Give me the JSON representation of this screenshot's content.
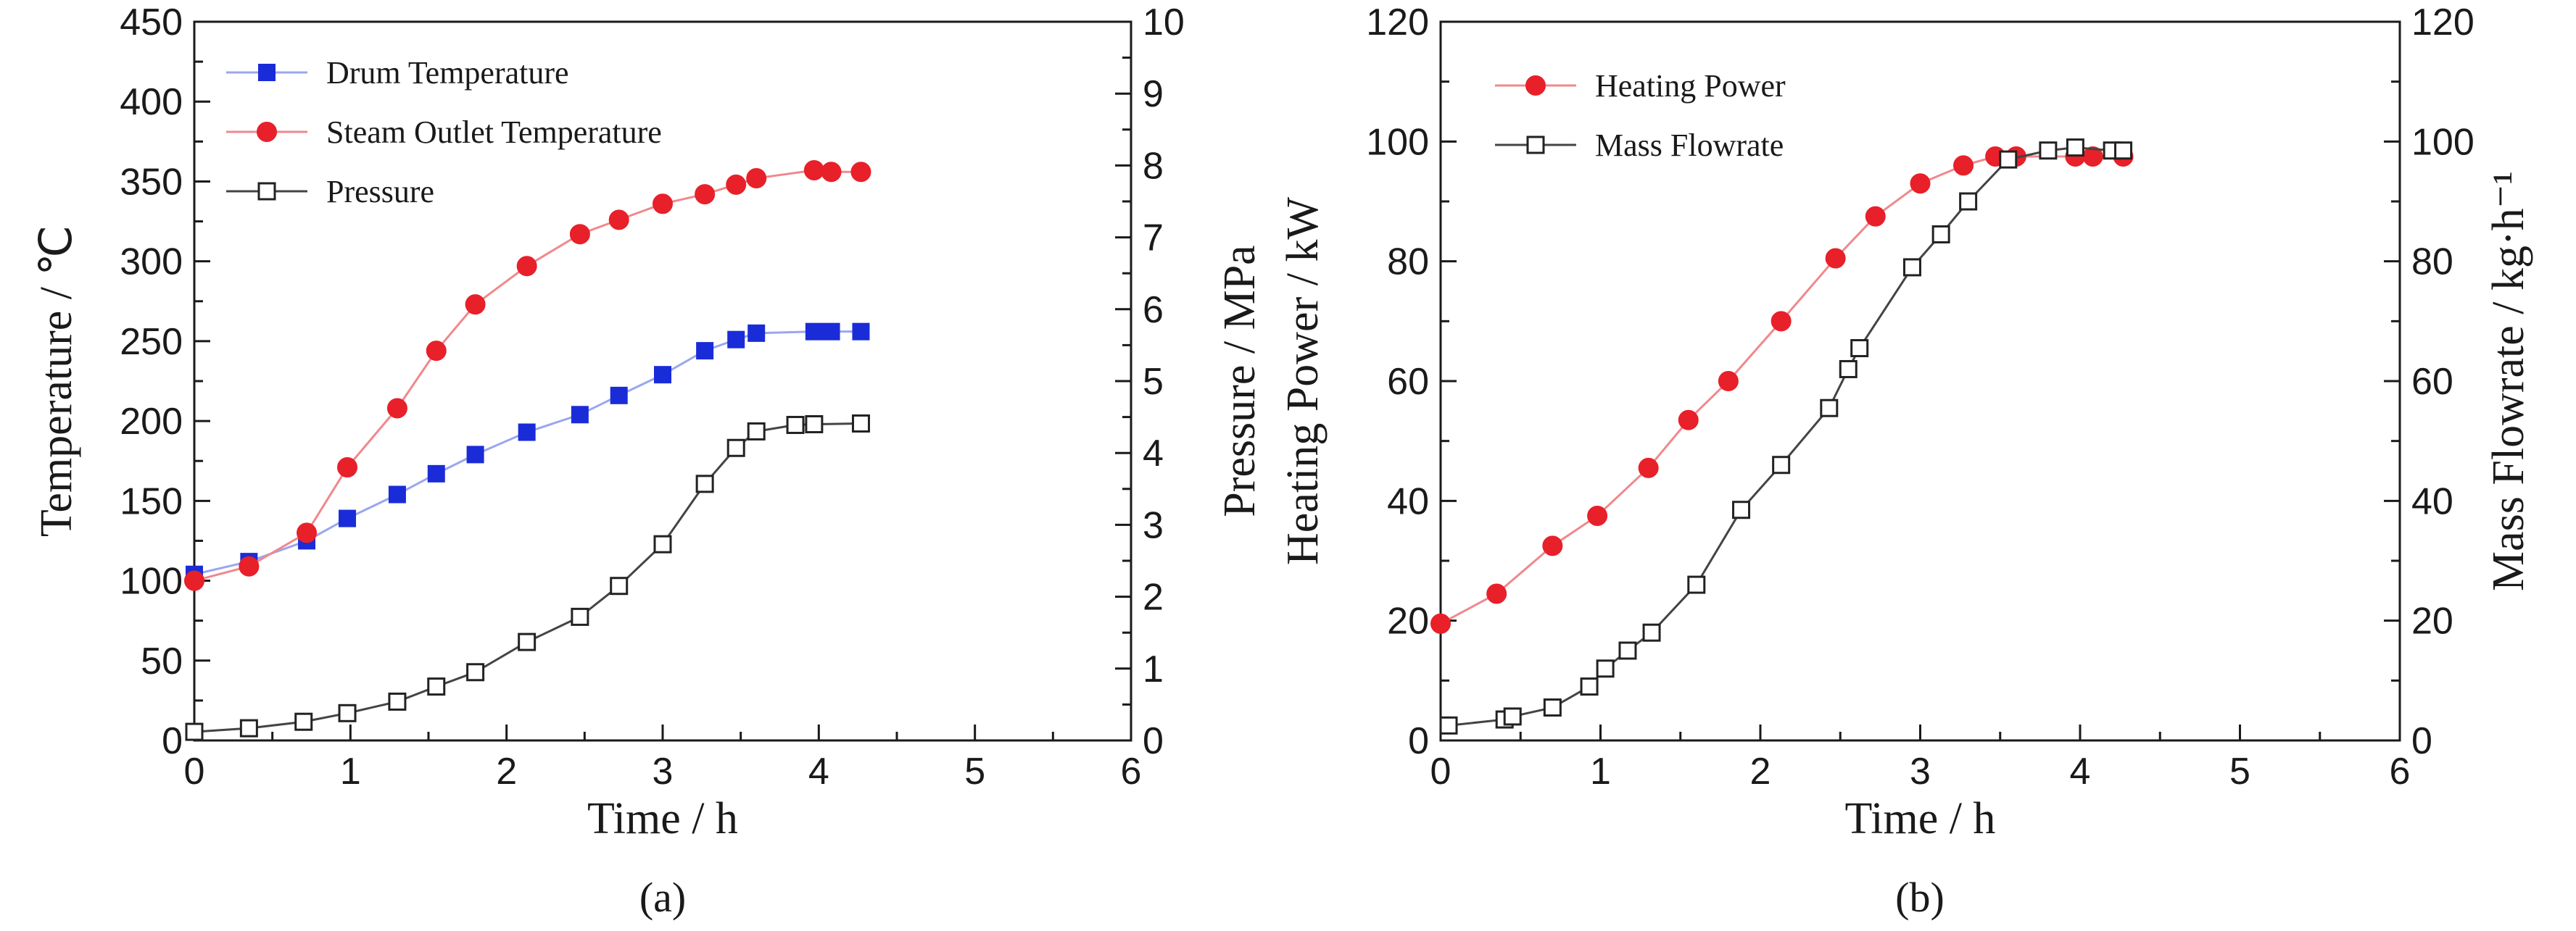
{
  "chart_data": [
    {
      "id": "a",
      "type": "line",
      "caption": "(a)",
      "xlabel": "Time / h",
      "ylabel_left": "Temperature / ℃",
      "ylabel_right": "Pressure / MPa",
      "xlim": [
        0,
        6
      ],
      "xticks": [
        0,
        1,
        2,
        3,
        4,
        5,
        6
      ],
      "ylim_left": [
        0,
        450
      ],
      "yticks_left": [
        0,
        50,
        100,
        150,
        200,
        250,
        300,
        350,
        400,
        450
      ],
      "ylim_right": [
        0,
        10
      ],
      "yticks_right": [
        0,
        1,
        2,
        3,
        4,
        5,
        6,
        7,
        8,
        9,
        10
      ],
      "legend_position": "top-left",
      "series": [
        {
          "name": "Drum Temperature",
          "axis": "left",
          "color": "#1a2cd8",
          "line_color": "#9aa6ee",
          "marker": "filled-square",
          "x": [
            0,
            0.35,
            0.72,
            0.98,
            1.3,
            1.55,
            1.8,
            2.13,
            2.47,
            2.72,
            3.0,
            3.27,
            3.47,
            3.6,
            3.97,
            4.08,
            4.27
          ],
          "y": [
            104,
            112,
            125,
            139,
            154,
            167,
            179,
            193,
            204,
            216,
            229,
            244,
            251,
            255,
            256,
            256,
            256
          ]
        },
        {
          "name": "Steam Outlet Temperature",
          "axis": "left",
          "color": "#e8202a",
          "line_color": "#f0888c",
          "marker": "filled-circle",
          "x": [
            0,
            0.35,
            0.72,
            0.98,
            1.3,
            1.55,
            1.8,
            2.13,
            2.47,
            2.72,
            3.0,
            3.27,
            3.47,
            3.6,
            3.97,
            4.08,
            4.27
          ],
          "y": [
            100,
            109,
            130,
            171,
            208,
            244,
            273,
            297,
            317,
            326,
            336,
            342,
            348,
            352,
            357,
            356,
            356
          ]
        },
        {
          "name": "Pressure",
          "axis": "right",
          "color": "#222222",
          "line_color": "#444444",
          "marker": "open-square",
          "x": [
            0,
            0.35,
            0.7,
            0.98,
            1.3,
            1.55,
            1.8,
            2.13,
            2.47,
            2.72,
            3.0,
            3.27,
            3.47,
            3.6,
            3.85,
            3.97,
            4.27
          ],
          "y": [
            0.12,
            0.17,
            0.26,
            0.38,
            0.54,
            0.75,
            0.95,
            1.37,
            1.72,
            2.15,
            2.73,
            3.57,
            4.07,
            4.3,
            4.39,
            4.4,
            4.41
          ]
        }
      ]
    },
    {
      "id": "b",
      "type": "line",
      "caption": "(b)",
      "xlabel": "Time / h",
      "ylabel_left": "Heating Power / kW",
      "ylabel_right": "Mass Flowrate / kg·h⁻¹",
      "xlim": [
        0,
        6
      ],
      "xticks": [
        0,
        1,
        2,
        3,
        4,
        5,
        6
      ],
      "ylim_left": [
        0,
        120
      ],
      "yticks_left": [
        0,
        20,
        40,
        60,
        80,
        100,
        120
      ],
      "ylim_right": [
        0,
        120
      ],
      "yticks_right": [
        0,
        20,
        40,
        60,
        80,
        100,
        120
      ],
      "legend_position": "top-left",
      "series": [
        {
          "name": "Heating Power",
          "axis": "left",
          "color": "#e8202a",
          "line_color": "#f0888c",
          "marker": "filled-circle",
          "x": [
            0,
            0.35,
            0.7,
            0.98,
            1.3,
            1.55,
            1.8,
            2.13,
            2.47,
            2.72,
            3.0,
            3.27,
            3.47,
            3.6,
            3.97,
            4.08,
            4.27
          ],
          "y": [
            19.5,
            24.5,
            32.5,
            37.5,
            45.5,
            53.5,
            60,
            70,
            80.5,
            87.5,
            93,
            96,
            97.5,
            97.5,
            97.5,
            97.5,
            97.5
          ]
        },
        {
          "name": "Mass Flowrate",
          "axis": "right",
          "color": "#222222",
          "line_color": "#444444",
          "marker": "open-square",
          "x": [
            0.05,
            0.4,
            0.45,
            0.7,
            0.93,
            1.03,
            1.17,
            1.32,
            1.6,
            1.88,
            2.13,
            2.43,
            2.55,
            2.62,
            2.95,
            3.13,
            3.3,
            3.55,
            3.8,
            3.97,
            4.2,
            4.27
          ],
          "y": [
            2.5,
            3.5,
            4,
            5.5,
            9,
            12,
            15,
            18,
            26,
            38.5,
            46,
            55.5,
            62,
            65.5,
            79,
            84.5,
            90,
            97,
            98.5,
            99,
            98.5,
            98.5
          ]
        }
      ]
    }
  ]
}
